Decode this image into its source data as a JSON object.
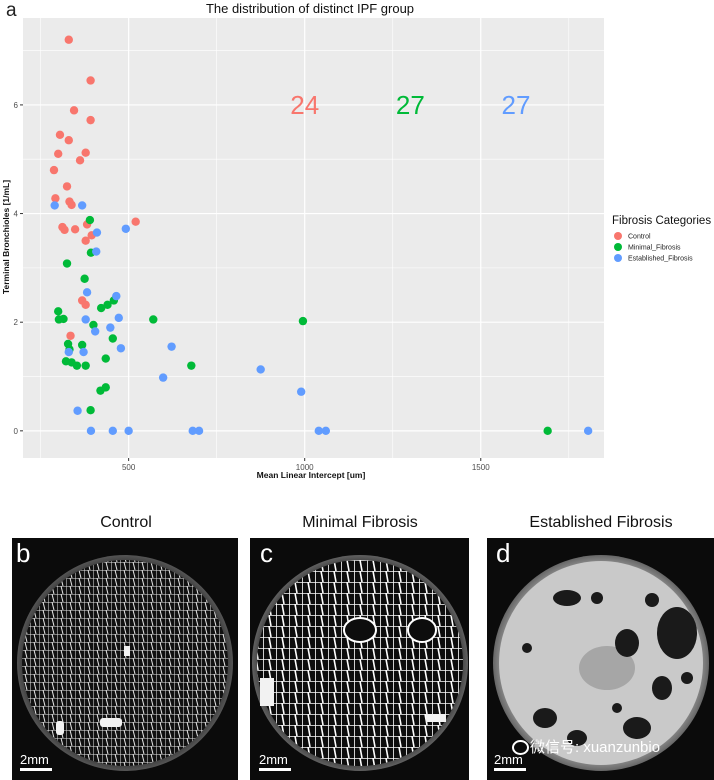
{
  "figure": {
    "panel_a_letter": "a",
    "panels": [
      {
        "letter": "b",
        "title": "Control",
        "scale": "2mm"
      },
      {
        "letter": "c",
        "title": "Minimal Fibrosis",
        "scale": "2mm"
      },
      {
        "letter": "d",
        "title": "Established Fibrosis",
        "scale": "2mm"
      }
    ],
    "watermark": "微信号: xuanzunbio"
  },
  "colors": {
    "Control": "#F8766D",
    "Minimal_Fibrosis": "#00BA38",
    "Established_Fibrosis": "#619CFF",
    "panel_bg": "#EBEBEB",
    "grid": "#FFFFFF"
  },
  "chart_data": {
    "type": "scatter",
    "title": "The distribution of distinct IPF group",
    "xlabel": "Mean Linear Intercept [um]",
    "ylabel": "Terminal Bronchioles [1/mL]",
    "xlim": [
      200,
      1850
    ],
    "ylim": [
      -0.5,
      7.6
    ],
    "xticks": [
      500,
      1000,
      1500
    ],
    "yticks": [
      0,
      2,
      4,
      6
    ],
    "grid": true,
    "legend": {
      "title": "Fibrosis Categories",
      "position": "right",
      "entries": [
        "Control",
        "Minimal_Fibrosis",
        "Established_Fibrosis"
      ]
    },
    "annotations": [
      {
        "text": "24",
        "series": "Control",
        "x": 1000,
        "y": 6.0
      },
      {
        "text": "27",
        "series": "Minimal_Fibrosis",
        "x": 1300,
        "y": 6.0
      },
      {
        "text": "27",
        "series": "Established_Fibrosis",
        "x": 1600,
        "y": 6.0
      }
    ],
    "series": [
      {
        "name": "Control",
        "points": [
          [
            330,
            7.2
          ],
          [
            392,
            6.45
          ],
          [
            345,
            5.9
          ],
          [
            392,
            5.72
          ],
          [
            305,
            5.45
          ],
          [
            330,
            5.35
          ],
          [
            300,
            5.1
          ],
          [
            378,
            5.12
          ],
          [
            362,
            4.98
          ],
          [
            288,
            4.8
          ],
          [
            325,
            4.5
          ],
          [
            292,
            4.28
          ],
          [
            332,
            4.22
          ],
          [
            338,
            4.16
          ],
          [
            382,
            3.8
          ],
          [
            312,
            3.75
          ],
          [
            318,
            3.7
          ],
          [
            348,
            3.71
          ],
          [
            395,
            3.6
          ],
          [
            378,
            3.5
          ],
          [
            520,
            3.85
          ],
          [
            368,
            2.4
          ],
          [
            378,
            2.32
          ],
          [
            335,
            1.75
          ]
        ]
      },
      {
        "name": "Minimal_Fibrosis",
        "points": [
          [
            390,
            3.88
          ],
          [
            393,
            3.28
          ],
          [
            325,
            3.08
          ],
          [
            375,
            2.8
          ],
          [
            440,
            2.32
          ],
          [
            422,
            2.26
          ],
          [
            458,
            2.4
          ],
          [
            570,
            2.05
          ],
          [
            300,
            2.2
          ],
          [
            302,
            2.05
          ],
          [
            315,
            2.06
          ],
          [
            995,
            2.02
          ],
          [
            400,
            1.95
          ],
          [
            328,
            1.6
          ],
          [
            332,
            1.5
          ],
          [
            455,
            1.7
          ],
          [
            368,
            1.58
          ],
          [
            322,
            1.28
          ],
          [
            338,
            1.26
          ],
          [
            353,
            1.2
          ],
          [
            378,
            1.2
          ],
          [
            435,
            1.33
          ],
          [
            678,
            1.2
          ],
          [
            435,
            0.8
          ],
          [
            420,
            0.74
          ],
          [
            392,
            0.38
          ],
          [
            1690,
            0.0
          ]
        ]
      },
      {
        "name": "Established_Fibrosis",
        "points": [
          [
            290,
            4.15
          ],
          [
            368,
            4.15
          ],
          [
            410,
            3.65
          ],
          [
            408,
            3.3
          ],
          [
            492,
            3.72
          ],
          [
            465,
            2.48
          ],
          [
            382,
            2.55
          ],
          [
            378,
            2.05
          ],
          [
            472,
            2.08
          ],
          [
            448,
            1.9
          ],
          [
            405,
            1.83
          ],
          [
            478,
            1.52
          ],
          [
            622,
            1.55
          ],
          [
            372,
            1.45
          ],
          [
            330,
            1.45
          ],
          [
            875,
            1.13
          ],
          [
            598,
            0.98
          ],
          [
            990,
            0.72
          ],
          [
            355,
            0.37
          ],
          [
            393,
            0.0
          ],
          [
            455,
            0.0
          ],
          [
            500,
            0.0
          ],
          [
            682,
            0.0
          ],
          [
            700,
            0.0
          ],
          [
            1040,
            0.0
          ],
          [
            1060,
            0.0
          ],
          [
            1805,
            0.0
          ]
        ]
      }
    ]
  }
}
